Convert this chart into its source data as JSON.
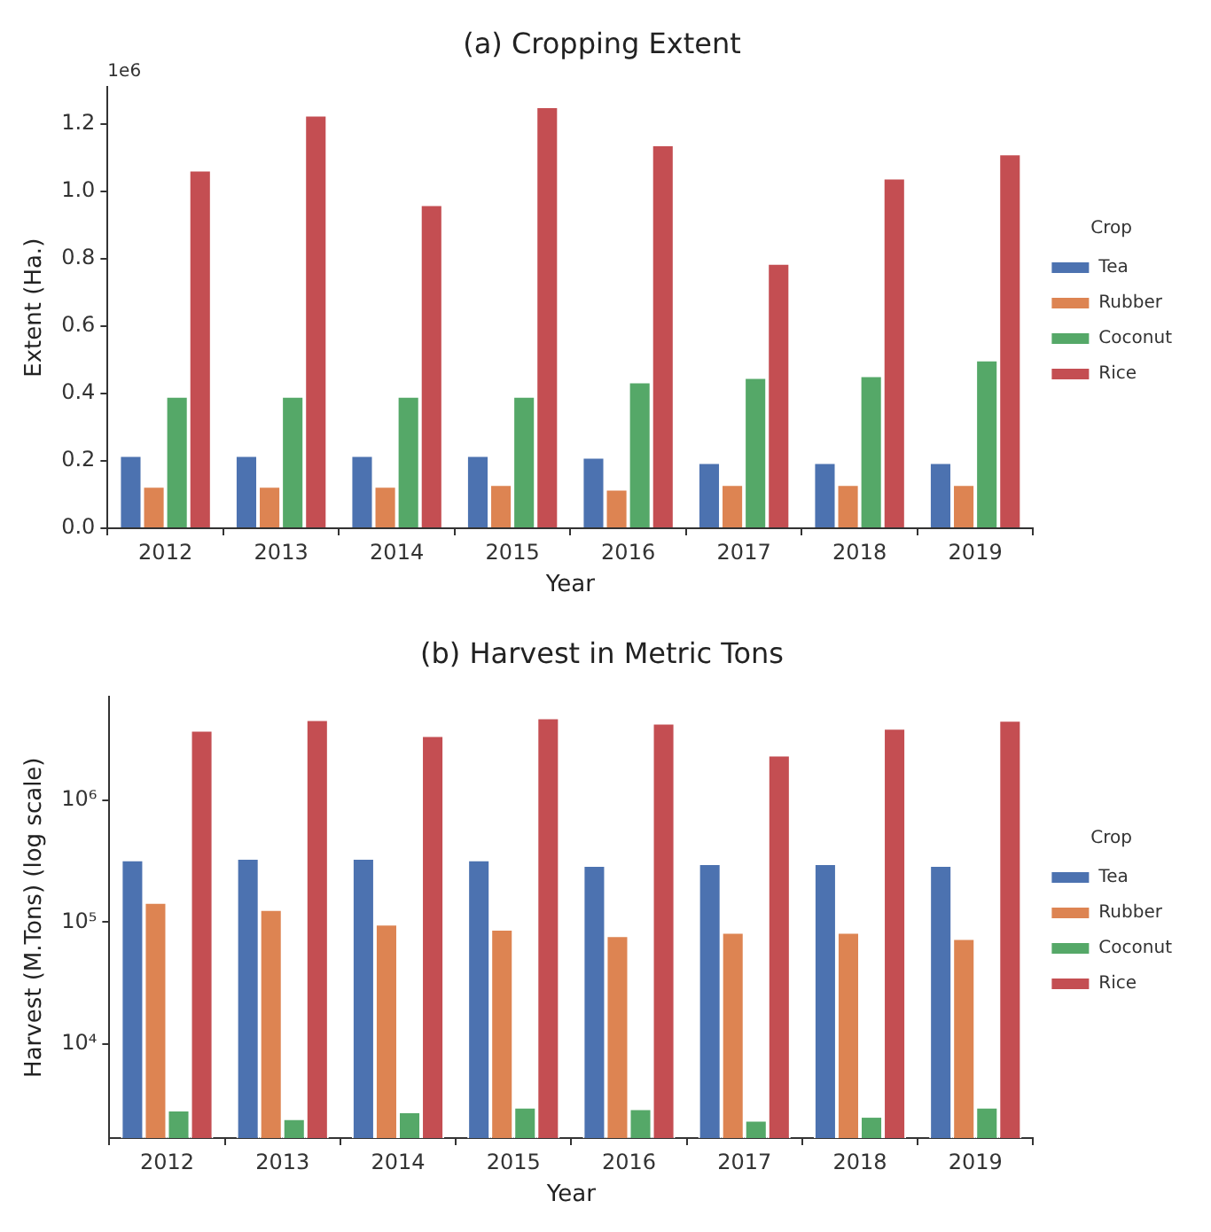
{
  "chart_data": [
    {
      "type": "bar",
      "title": "(a) Cropping Extent",
      "xlabel": "Year",
      "ylabel": "Extent (Ha.)",
      "legend_title": "Crop",
      "legend": "right",
      "grid": false,
      "categories": [
        "2012",
        "2013",
        "2014",
        "2015",
        "2016",
        "2017",
        "2018",
        "2019"
      ],
      "ylim": [
        0,
        1.31
      ],
      "yticks": [
        {
          "value": 0,
          "label": "0.0"
        },
        0.2,
        0.4,
        0.6,
        0.8,
        {
          "value": 1,
          "label": "1.0"
        },
        1.2
      ],
      "annotations": [
        "1e6"
      ],
      "series": [
        {
          "name": "Tea",
          "color": "#4c72b0",
          "values": [
            0.217,
            0.217,
            0.217,
            0.217,
            0.212,
            0.196,
            0.196,
            0.196
          ]
        },
        {
          "name": "Rubber",
          "color": "#dd8452",
          "values": [
            0.126,
            0.126,
            0.126,
            0.131,
            0.117,
            0.131,
            0.131,
            0.131
          ]
        },
        {
          "name": "Coconut",
          "color": "#55a868",
          "values": [
            0.393,
            0.393,
            0.393,
            0.393,
            0.436,
            0.449,
            0.454,
            0.501
          ]
        },
        {
          "name": "Rice",
          "color": "#c44e52",
          "values": [
            1.065,
            1.228,
            0.962,
            1.253,
            1.14,
            0.788,
            1.041,
            1.113
          ]
        }
      ]
    },
    {
      "type": "bar",
      "title": "(b) Harvest in Metric Tons",
      "xlabel": "Year",
      "ylabel": "Harvest (M.Tons) (log scale)",
      "legend_title": "Crop",
      "legend": "right",
      "grid": false,
      "log": true,
      "categories": [
        "2012",
        "2013",
        "2014",
        "2015",
        "2016",
        "2017",
        "2018",
        "2019"
      ],
      "ylim": [
        1700,
        7000000
      ],
      "yticks": [
        {
          "value": 10000,
          "label": "10⁴"
        },
        {
          "value": 100000,
          "label": "10⁵"
        },
        {
          "value": 1000000,
          "label": "10⁶"
        }
      ],
      "series": [
        {
          "name": "Tea",
          "color": "#4c72b0",
          "values": [
            326000,
            335000,
            335000,
            326000,
            294000,
            303000,
            303000,
            294000
          ]
        },
        {
          "name": "Rubber",
          "color": "#dd8452",
          "values": [
            146000,
            128000,
            97000,
            88000,
            78000,
            83000,
            83000,
            74000
          ]
        },
        {
          "name": "Coconut",
          "color": "#55a868",
          "values": [
            2900,
            2470,
            2810,
            3070,
            2980,
            2400,
            2580,
            3070
          ]
        },
        {
          "name": "Rice",
          "color": "#c44e52",
          "values": [
            3770000,
            4600000,
            3400000,
            4750000,
            4300000,
            2360000,
            3900000,
            4550000
          ]
        }
      ]
    }
  ]
}
